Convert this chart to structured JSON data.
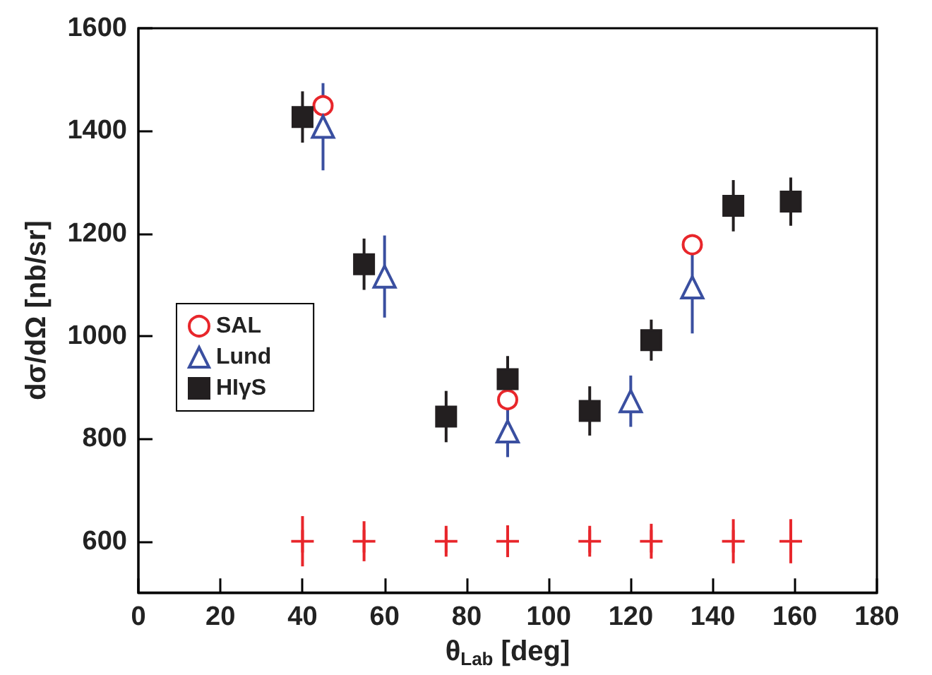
{
  "chart_data": {
    "type": "scatter",
    "xlabel": "θ$_{Lab}$ [deg]",
    "ylabel": "dσ/dΩ [nb/sr]",
    "xlim": [
      0,
      180
    ],
    "xticks": [
      0,
      20,
      40,
      60,
      80,
      100,
      120,
      140,
      160,
      180
    ],
    "ylim": [
      500,
      1600
    ],
    "yticks": [
      600,
      800,
      1000,
      1200,
      1400,
      1600
    ],
    "grid": false,
    "legend": "left",
    "series": [
      {
        "name": "SAL",
        "color": "#e8262b",
        "marker": "circle",
        "x": [
          45,
          90,
          135
        ],
        "values": [
          1449,
          876,
          1178
        ]
      },
      {
        "name": "Lund",
        "color": "#3a4fa0",
        "marker": "triangle",
        "x": [
          45,
          60,
          90,
          120,
          135
        ],
        "values": [
          1408,
          1116,
          814,
          873,
          1095
        ],
        "errors": [
          85,
          80,
          50,
          50,
          90
        ]
      },
      {
        "name": "HIγS",
        "color": "#231f20",
        "marker": "square",
        "x": [
          40,
          55,
          75,
          90,
          110,
          125,
          145,
          159
        ],
        "values": [
          1427,
          1140,
          843,
          916,
          854,
          992,
          1254,
          1262
        ],
        "errors": [
          50,
          50,
          50,
          45,
          48,
          40,
          50,
          47
        ]
      },
      {
        "color": "#e8262b",
        "marker": "cross",
        "x": [
          40,
          55,
          75,
          90,
          110,
          125,
          145,
          159
        ],
        "values": [
          600,
          600,
          600,
          600,
          600,
          600,
          600,
          600
        ],
        "errors": [
          49,
          39,
          30,
          31,
          30,
          34,
          43,
          43
        ]
      }
    ]
  }
}
